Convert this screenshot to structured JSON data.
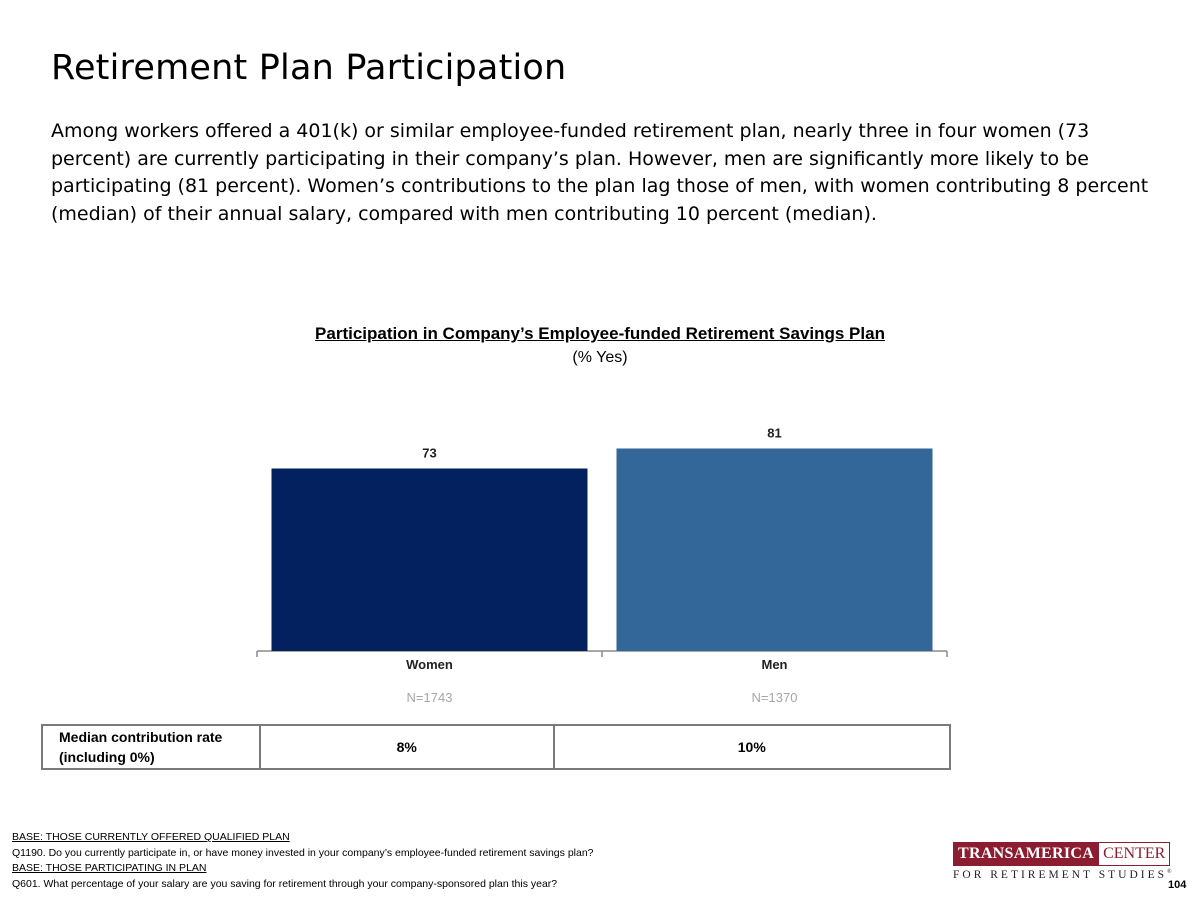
{
  "page": {
    "title": "Retirement Plan Participation",
    "intro": "Among workers offered a 401(k) or similar employee-funded retirement plan, nearly three in four women (73 percent) are currently participating in their company’s plan. However, men are significantly more likely to be participating (81 percent). Women’s contributions to the plan lag those of men, with women contributing 8 percent (median) of their annual salary, compared with men contributing 10 percent (median).",
    "page_number": "104"
  },
  "chart_data": {
    "type": "bar",
    "title": "Participation in Company’s Employee-funded Retirement Savings Plan",
    "subtitle": "(% Yes)",
    "categories": [
      "Women",
      "Men"
    ],
    "values": [
      73,
      81
    ],
    "value_labels": [
      "73",
      "81"
    ],
    "sample_sizes": [
      "N=1743",
      "N=1370"
    ],
    "colors": [
      "#03215f",
      "#336699"
    ],
    "ylim": [
      0,
      100
    ],
    "grid": false,
    "legend": "none"
  },
  "table": {
    "row_label_line1": "Median contribution rate",
    "row_label_line2": "(including 0%)",
    "values": [
      "8%",
      "10%"
    ]
  },
  "footnotes": {
    "base1": "BASE: THOSE CURRENTLY OFFERED QUALIFIED PLAN",
    "q1": "Q1190. Do you currently participate in, or have money invested in your company’s employee-funded retirement savings plan?",
    "base2": "BASE: THOSE PARTICIPATING IN PLAN",
    "q2": "Q601. What percentage of your salary are you saving for retirement through your company-sponsored plan this year?"
  },
  "logo": {
    "brand": "TRANSAMERICA",
    "center": "CENTER",
    "tagline": "FOR RETIREMENT STUDIES",
    "registered": "®"
  }
}
